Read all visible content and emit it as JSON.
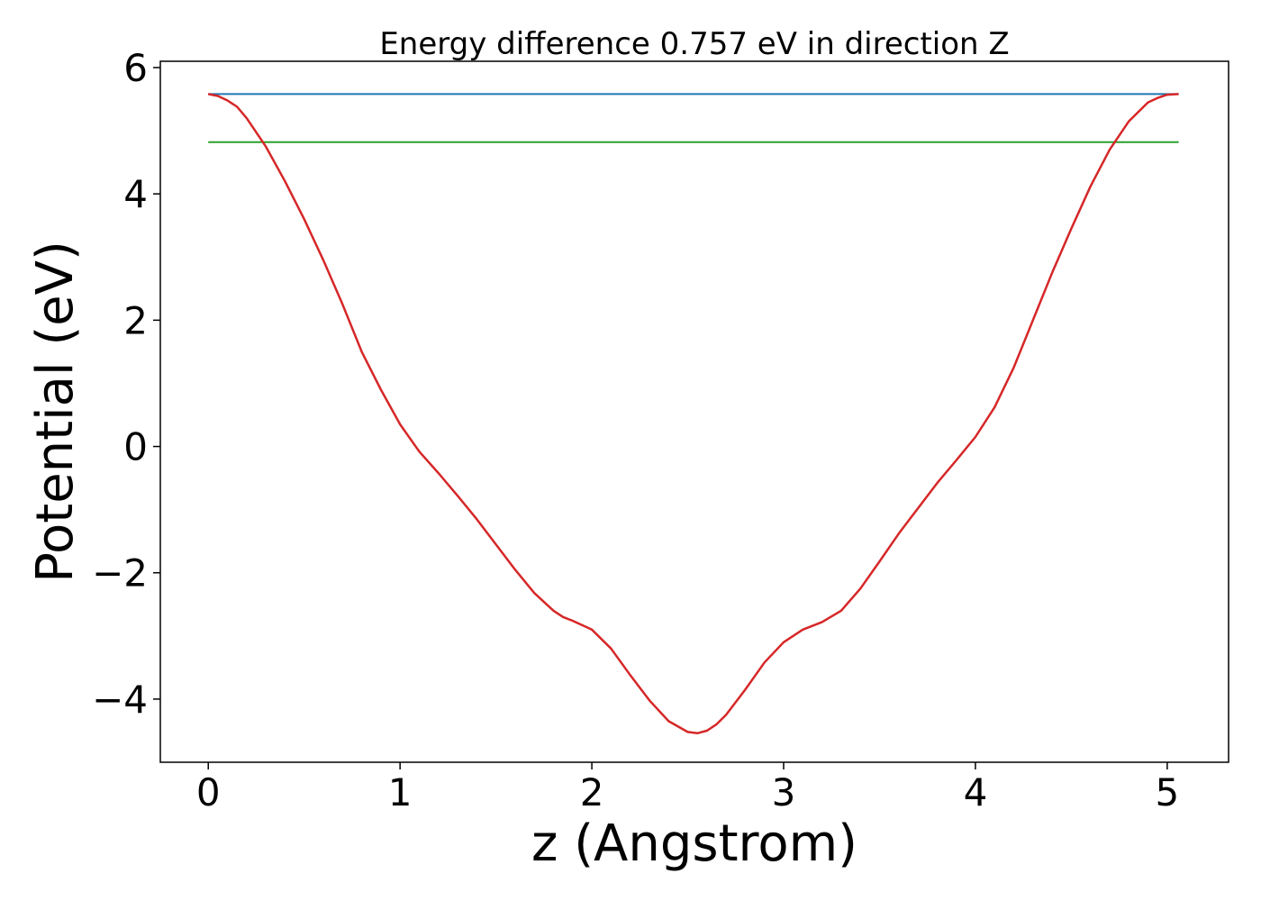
{
  "chart_data": {
    "type": "line",
    "title": "Energy difference 0.757 eV in direction Z",
    "xlabel": "z (Angstrom)",
    "ylabel": "Potential (eV)",
    "xlim": [
      -0.25,
      5.32
    ],
    "ylim": [
      -5.0,
      6.1
    ],
    "xticks": [
      0,
      1,
      2,
      3,
      4,
      5
    ],
    "yticks": [
      -4,
      -2,
      0,
      2,
      4,
      6
    ],
    "xtick_labels": [
      "0",
      "1",
      "2",
      "3",
      "4",
      "5"
    ],
    "ytick_labels": [
      "−4",
      "−2",
      "0",
      "2",
      "4",
      "6"
    ],
    "grid": false,
    "series": [
      {
        "color": "#d62728",
        "style": "solid",
        "x": [
          0,
          0.05,
          0.1,
          0.15,
          0.2,
          0.3,
          0.4,
          0.5,
          0.6,
          0.7,
          0.8,
          0.9,
          1.0,
          1.1,
          1.2,
          1.3,
          1.4,
          1.5,
          1.6,
          1.7,
          1.8,
          1.85,
          1.9,
          2.0,
          2.1,
          2.2,
          2.3,
          2.4,
          2.5,
          2.55,
          2.6,
          2.65,
          2.7,
          2.8,
          2.9,
          3.0,
          3.1,
          3.2,
          3.3,
          3.4,
          3.5,
          3.6,
          3.7,
          3.8,
          3.9,
          4.0,
          4.1,
          4.2,
          4.3,
          4.4,
          4.5,
          4.6,
          4.7,
          4.8,
          4.9,
          4.95,
          5.0,
          5.06
        ],
        "y": [
          5.58,
          5.55,
          5.48,
          5.38,
          5.2,
          4.75,
          4.2,
          3.6,
          2.95,
          2.25,
          1.5,
          0.9,
          0.35,
          -0.08,
          -0.42,
          -0.78,
          -1.15,
          -1.55,
          -1.95,
          -2.32,
          -2.6,
          -2.7,
          -2.76,
          -2.9,
          -3.2,
          -3.62,
          -4.02,
          -4.35,
          -4.52,
          -4.54,
          -4.5,
          -4.4,
          -4.25,
          -3.85,
          -3.42,
          -3.1,
          -2.9,
          -2.78,
          -2.6,
          -2.25,
          -1.82,
          -1.38,
          -0.98,
          -0.58,
          -0.22,
          0.15,
          0.62,
          1.25,
          2.0,
          2.75,
          3.45,
          4.12,
          4.7,
          5.15,
          5.45,
          5.52,
          5.57,
          5.58
        ]
      },
      {
        "color": "#1f77b4",
        "style": "solid",
        "x": [
          0,
          5.06
        ],
        "y": [
          5.58,
          5.58
        ]
      },
      {
        "color": "#2ca02c",
        "style": "solid",
        "x": [
          0,
          5.06
        ],
        "y": [
          4.82,
          4.82
        ]
      }
    ]
  }
}
